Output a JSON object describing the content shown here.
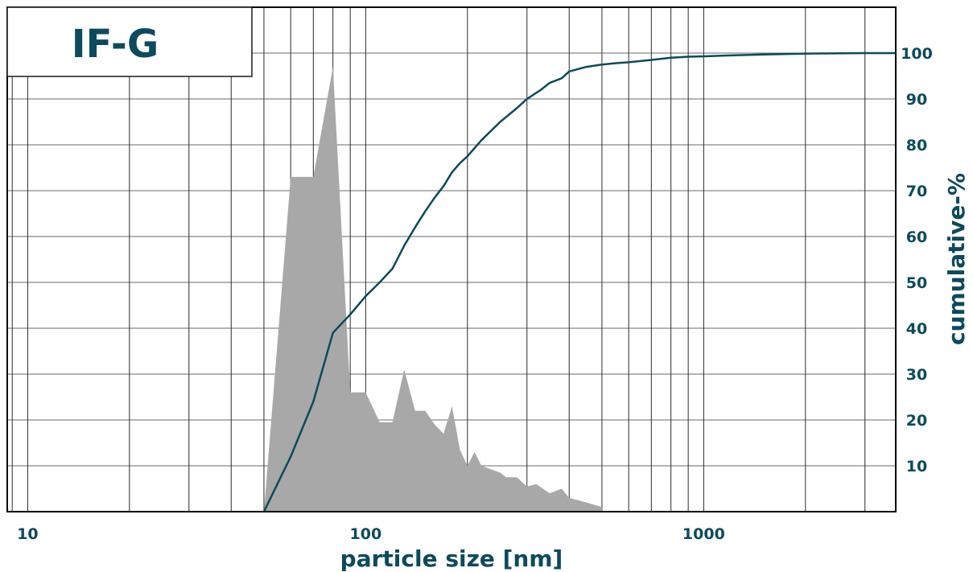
{
  "chart_data": {
    "type": "area",
    "title": "IF-G",
    "xlabel": "particle size [nm]",
    "ylabel": "cumulative-%",
    "x_scale": "log",
    "xlim": [
      8.7,
      3700
    ],
    "ylim": [
      0,
      110
    ],
    "x_ticks": [
      10,
      100,
      1000
    ],
    "x_tick_labels": [
      "10",
      "100",
      "1000"
    ],
    "y_ticks": [
      10,
      20,
      30,
      40,
      50,
      60,
      70,
      80,
      90,
      100
    ],
    "y_tick_labels": [
      "10",
      "20",
      "30",
      "40",
      "50",
      "60",
      "70",
      "80",
      "90",
      "100"
    ],
    "y_axis_side": "right",
    "grid": true,
    "series": [
      {
        "kind": "area",
        "color": "#a8a8a8",
        "x": [
          50,
          60,
          70,
          80,
          90,
          100,
          110,
          120,
          130,
          140,
          150,
          160,
          170,
          180,
          190,
          200,
          210,
          220,
          230,
          240,
          250,
          260,
          280,
          300,
          320,
          350,
          380,
          400,
          450,
          500
        ],
        "y": [
          0,
          73,
          73,
          97,
          26,
          26,
          19.5,
          19.5,
          31,
          22,
          22,
          19,
          17,
          23,
          13.5,
          10,
          13,
          10,
          9.5,
          9,
          8.5,
          7.5,
          7.5,
          5.5,
          6,
          4,
          5,
          3,
          2,
          1
        ]
      },
      {
        "kind": "line",
        "color": "#0d4a5c",
        "x": [
          50,
          60,
          70,
          80,
          90,
          100,
          110,
          120,
          130,
          140,
          150,
          160,
          170,
          180,
          190,
          200,
          220,
          250,
          280,
          300,
          330,
          350,
          380,
          400,
          450,
          500,
          550,
          600,
          700,
          800,
          900,
          1000,
          1200,
          1500,
          2000,
          3000,
          3700
        ],
        "y": [
          0,
          12,
          24,
          39,
          43,
          47,
          50,
          53,
          58,
          62,
          65.5,
          68.5,
          71,
          74,
          76,
          77.5,
          81,
          85,
          88,
          90,
          92,
          93.5,
          94.5,
          96,
          97,
          97.5,
          97.8,
          98,
          98.5,
          99,
          99.2,
          99.3,
          99.5,
          99.7,
          99.9,
          100,
          100
        ]
      }
    ]
  }
}
